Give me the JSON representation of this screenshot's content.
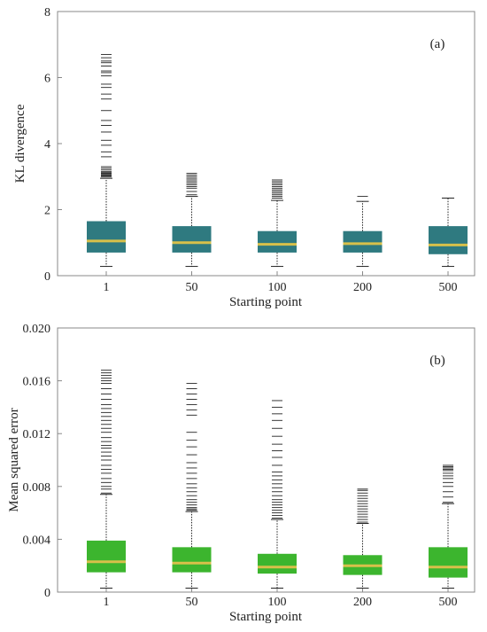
{
  "chart_data": [
    {
      "type": "box",
      "panel_label": "(a)",
      "xlabel": "Starting point",
      "ylabel": "KL divergence",
      "ylim": [
        0,
        8
      ],
      "yticks": [
        "0",
        "2",
        "4",
        "6",
        "8"
      ],
      "categories": [
        "1",
        "50",
        "100",
        "200",
        "500"
      ],
      "box_color": "#2f7a80",
      "median_color": "#d8c04a",
      "boxes": [
        {
          "q1": 0.7,
          "median": 1.05,
          "q3": 1.65,
          "whisker_low": 0.28,
          "whisker_high": 2.95,
          "outliers": [
            2.95,
            3.0,
            3.02,
            3.05,
            3.08,
            3.1,
            3.12,
            3.15,
            3.2,
            3.25,
            3.3,
            3.6,
            3.75,
            3.95,
            4.1,
            4.35,
            4.55,
            4.7,
            5.0,
            5.35,
            5.5,
            5.7,
            5.8,
            6.05,
            6.15,
            6.2,
            6.35,
            6.45,
            6.5,
            6.6,
            6.7
          ]
        },
        {
          "q1": 0.7,
          "median": 1.0,
          "q3": 1.5,
          "whisker_low": 0.28,
          "whisker_high": 2.4,
          "outliers": [
            2.45,
            2.55,
            2.65,
            2.7,
            2.75,
            2.8,
            2.85,
            2.9,
            2.95,
            3.0,
            3.05,
            3.1
          ]
        },
        {
          "q1": 0.7,
          "median": 0.95,
          "q3": 1.35,
          "whisker_low": 0.28,
          "whisker_high": 2.28,
          "outliers": [
            2.35,
            2.4,
            2.45,
            2.5,
            2.55,
            2.6,
            2.65,
            2.7,
            2.75,
            2.8,
            2.85,
            2.9
          ]
        },
        {
          "q1": 0.7,
          "median": 0.97,
          "q3": 1.35,
          "whisker_low": 0.28,
          "whisker_high": 2.25,
          "outliers": [
            2.4
          ]
        },
        {
          "q1": 0.65,
          "median": 0.93,
          "q3": 1.5,
          "whisker_low": 0.28,
          "whisker_high": 2.35,
          "outliers": []
        }
      ]
    },
    {
      "type": "box",
      "panel_label": "(b)",
      "xlabel": "Starting point",
      "ylabel": "Mean squared error",
      "ylim": [
        0,
        0.02
      ],
      "yticks": [
        "0",
        "0.004",
        "0.008",
        "0.012",
        "0.016",
        "0.020"
      ],
      "categories": [
        "1",
        "50",
        "100",
        "200",
        "500"
      ],
      "box_color": "#3cb52e",
      "median_color": "#d8c04a",
      "boxes": [
        {
          "q1": 0.0015,
          "median": 0.0023,
          "q3": 0.0039,
          "whisker_low": 0.0003,
          "whisker_high": 0.0074,
          "outliers": [
            0.0075,
            0.0078,
            0.008,
            0.0083,
            0.0086,
            0.009,
            0.0093,
            0.0096,
            0.01,
            0.0103,
            0.0106,
            0.0109,
            0.0111,
            0.0114,
            0.0117,
            0.0121,
            0.0124,
            0.0127,
            0.013,
            0.0133,
            0.0136,
            0.0139,
            0.0142,
            0.0146,
            0.015,
            0.0154,
            0.0158,
            0.016,
            0.0162,
            0.0164,
            0.0166,
            0.0168
          ]
        },
        {
          "q1": 0.0015,
          "median": 0.0022,
          "q3": 0.0034,
          "whisker_low": 0.0003,
          "whisker_high": 0.0061,
          "outliers": [
            0.0062,
            0.0063,
            0.0064,
            0.0066,
            0.0068,
            0.007,
            0.0073,
            0.0076,
            0.0079,
            0.0082,
            0.0086,
            0.009,
            0.0094,
            0.0098,
            0.0104,
            0.011,
            0.0115,
            0.0121,
            0.0134,
            0.0138,
            0.0142,
            0.0146,
            0.015,
            0.0154,
            0.0158
          ]
        },
        {
          "q1": 0.0014,
          "median": 0.0019,
          "q3": 0.0029,
          "whisker_low": 0.0003,
          "whisker_high": 0.0055,
          "outliers": [
            0.0056,
            0.0058,
            0.006,
            0.0062,
            0.0064,
            0.0066,
            0.0068,
            0.007,
            0.0073,
            0.0076,
            0.0079,
            0.0082,
            0.0085,
            0.0088,
            0.0091,
            0.0096,
            0.0102,
            0.0107,
            0.0112,
            0.0118,
            0.0124,
            0.013,
            0.0135,
            0.014,
            0.0145
          ]
        },
        {
          "q1": 0.0013,
          "median": 0.002,
          "q3": 0.0028,
          "whisker_low": 0.0003,
          "whisker_high": 0.0052,
          "outliers": [
            0.0053,
            0.0055,
            0.0057,
            0.0059,
            0.0061,
            0.0063,
            0.0065,
            0.0067,
            0.0069,
            0.0071,
            0.0073,
            0.0075,
            0.0077,
            0.0078
          ]
        },
        {
          "q1": 0.0011,
          "median": 0.0019,
          "q3": 0.0034,
          "whisker_low": 0.0003,
          "whisker_high": 0.0067,
          "outliers": [
            0.0068,
            0.0072,
            0.0076,
            0.008,
            0.0083,
            0.0086,
            0.0088,
            0.009,
            0.0092,
            0.0093,
            0.0094,
            0.0095,
            0.0096
          ]
        }
      ]
    }
  ]
}
